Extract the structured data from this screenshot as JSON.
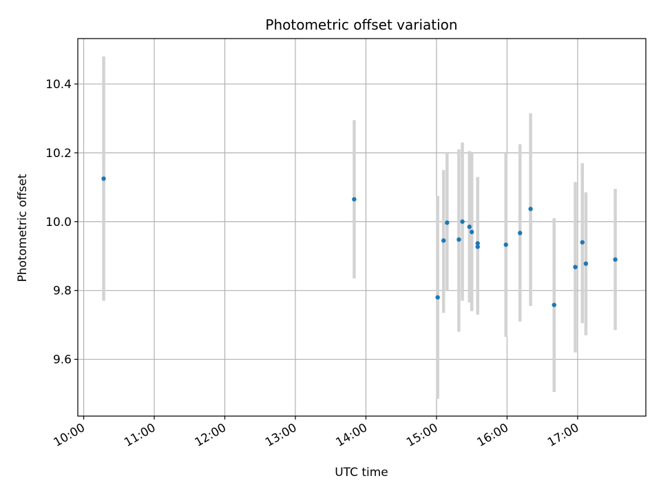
{
  "chart_data": {
    "type": "scatter",
    "title": "Photometric offset variation",
    "xlabel": "UTC time",
    "ylabel": "Photometric offset",
    "x_type": "time",
    "xlim": [
      "09:55",
      "17:58"
    ],
    "ylim": [
      9.435,
      10.532
    ],
    "x_ticks": [
      "10:00",
      "11:00",
      "12:00",
      "13:00",
      "14:00",
      "15:00",
      "16:00",
      "17:00"
    ],
    "y_ticks": [
      9.6,
      9.8,
      10.0,
      10.2,
      10.4
    ],
    "y_tick_labels": [
      "9.6",
      "9.8",
      "10.0",
      "10.2",
      "10.4"
    ],
    "grid": true,
    "colors": {
      "point": "#1f77b4",
      "errorbar": "#d3d3d3",
      "grid": "#b0b0b0"
    },
    "points": [
      {
        "x": "10:17",
        "y": 10.125,
        "ylo": 9.77,
        "yhi": 10.48
      },
      {
        "x": "13:50",
        "y": 10.065,
        "ylo": 9.835,
        "yhi": 10.295
      },
      {
        "x": "15:01",
        "y": 9.78,
        "ylo": 9.485,
        "yhi": 10.075
      },
      {
        "x": "15:06",
        "y": 9.945,
        "ylo": 9.735,
        "yhi": 10.15
      },
      {
        "x": "15:09",
        "y": 9.997,
        "ylo": 9.8,
        "yhi": 10.2
      },
      {
        "x": "15:19",
        "y": 9.948,
        "ylo": 9.68,
        "yhi": 10.21
      },
      {
        "x": "15:22",
        "y": 10.0,
        "ylo": 9.77,
        "yhi": 10.23
      },
      {
        "x": "15:28",
        "y": 9.985,
        "ylo": 9.765,
        "yhi": 10.205
      },
      {
        "x": "15:30",
        "y": 9.97,
        "ylo": 9.74,
        "yhi": 10.2
      },
      {
        "x": "15:35",
        "y": 9.937,
        "ylo": 9.74,
        "yhi": 10.13
      },
      {
        "x": "15:35",
        "y": 9.927,
        "ylo": 9.73,
        "yhi": 10.12
      },
      {
        "x": "15:59",
        "y": 9.933,
        "ylo": 9.665,
        "yhi": 10.2
      },
      {
        "x": "16:11",
        "y": 9.967,
        "ylo": 9.71,
        "yhi": 10.225
      },
      {
        "x": "16:20",
        "y": 10.037,
        "ylo": 9.755,
        "yhi": 10.315
      },
      {
        "x": "16:40",
        "y": 9.758,
        "ylo": 9.505,
        "yhi": 10.01
      },
      {
        "x": "16:58",
        "y": 9.868,
        "ylo": 9.62,
        "yhi": 10.115
      },
      {
        "x": "17:04",
        "y": 9.94,
        "ylo": 9.705,
        "yhi": 10.17
      },
      {
        "x": "17:07",
        "y": 9.878,
        "ylo": 9.67,
        "yhi": 10.085
      },
      {
        "x": "17:32",
        "y": 9.89,
        "ylo": 9.685,
        "yhi": 10.095
      }
    ]
  }
}
